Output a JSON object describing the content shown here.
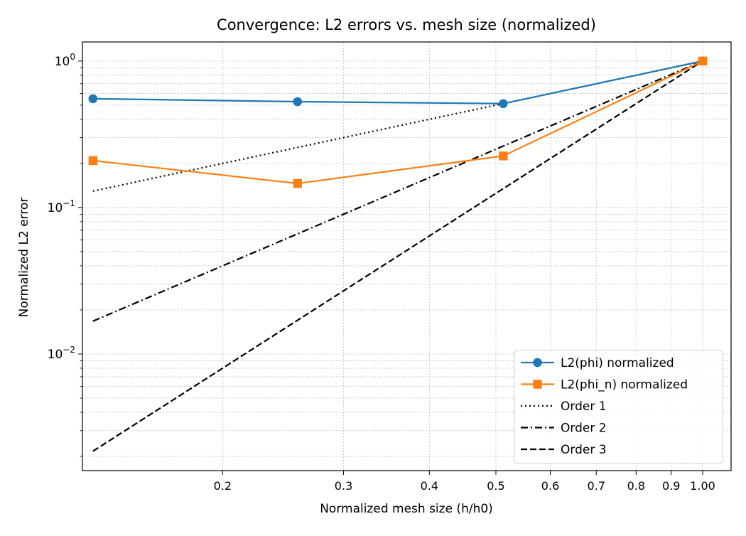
{
  "chart_data": {
    "type": "line",
    "title": "Convergence: L2 errors vs. mesh size (normalized)",
    "xlabel": "Normalized mesh size (h/h0)",
    "ylabel": "Normalized L2 error",
    "xscale": "log",
    "yscale": "log",
    "xlim": [
      0.125,
      1.1
    ],
    "ylim": [
      0.0016,
      1.35
    ],
    "grid": true,
    "legend_position": "lower-right",
    "x_tick_labels": [
      {
        "value": 0.2,
        "label": "0.2"
      },
      {
        "value": 0.3,
        "label": "0.3"
      },
      {
        "value": 0.4,
        "label": "0.4"
      },
      {
        "value": 0.5,
        "label": "0.5"
      },
      {
        "value": 0.6,
        "label": "0.6"
      },
      {
        "value": 0.7,
        "label": "0.7"
      },
      {
        "value": 0.8,
        "label": "0.8"
      },
      {
        "value": 0.9,
        "label": "0.9"
      },
      {
        "value": 1.0,
        "label": "1.00"
      }
    ],
    "y_tick_labels": [
      {
        "value": 0.01,
        "base": "10",
        "exp": "−2"
      },
      {
        "value": 0.1,
        "base": "10",
        "exp": "−1"
      },
      {
        "value": 1.0,
        "base": "10",
        "exp": "0"
      }
    ],
    "series": [
      {
        "name": "L2(phi) normalized",
        "color": "#1f77b4",
        "linestyle": "solid",
        "marker": "circle",
        "x": [
          0.1295,
          0.2571,
          0.5124,
          1.0
        ],
        "y": [
          0.553,
          0.528,
          0.512,
          1.0
        ]
      },
      {
        "name": "L2(phi_n) normalized",
        "color": "#ff7f0e",
        "linestyle": "solid",
        "marker": "square",
        "x": [
          0.1295,
          0.2571,
          0.5124,
          1.0
        ],
        "y": [
          0.209,
          0.146,
          0.225,
          1.0
        ]
      },
      {
        "name": "Order 1",
        "color": "#000000",
        "linestyle": "dotted",
        "marker": "none",
        "x": [
          0.1295,
          0.2571,
          0.5124,
          1.0
        ],
        "y": [
          0.1295,
          0.2571,
          0.5124,
          1.0
        ]
      },
      {
        "name": "Order 2",
        "color": "#000000",
        "linestyle": "dashdot",
        "marker": "none",
        "x": [
          0.1295,
          0.2571,
          0.5124,
          1.0
        ],
        "y": [
          0.01677,
          0.0661,
          0.2626,
          1.0
        ]
      },
      {
        "name": "Order 3",
        "color": "#000000",
        "linestyle": "dashed",
        "marker": "none",
        "x": [
          0.1295,
          0.2571,
          0.5124,
          1.0
        ],
        "y": [
          0.002172,
          0.01699,
          0.1345,
          1.0
        ]
      }
    ]
  }
}
